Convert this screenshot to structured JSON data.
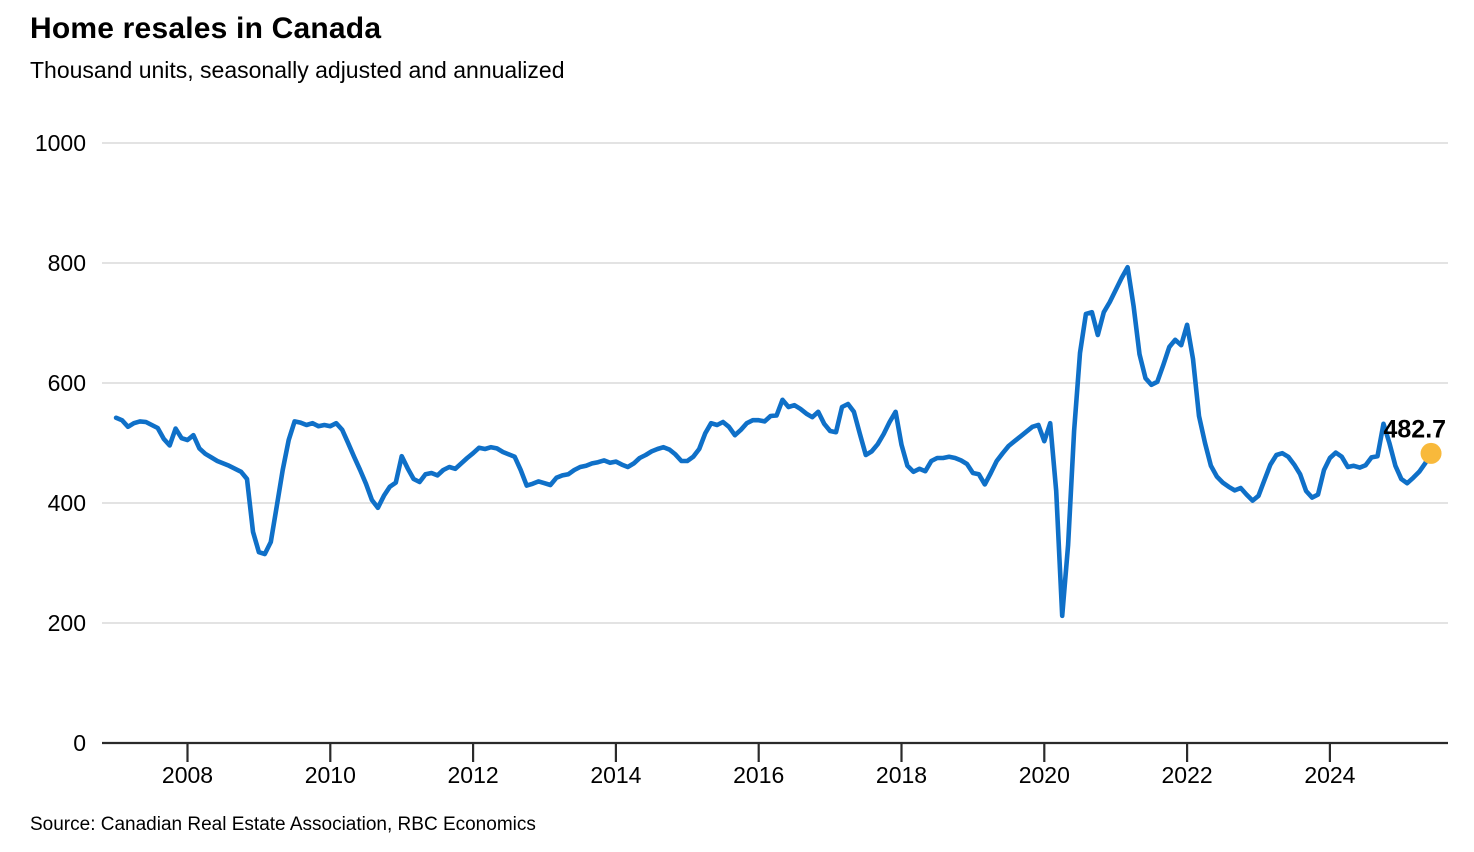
{
  "header": {
    "title": "Home resales in Canada",
    "subtitle": "Thousand units, seasonally adjusted and annualized"
  },
  "footer": {
    "source": "Source: Canadian Real Estate Association, RBC Economics"
  },
  "chart_data": {
    "type": "line",
    "title": "Home resales in Canada",
    "subtitle": "Thousand units, seasonally adjusted and annualized",
    "source": "Source: Canadian Real Estate Association, RBC Economics",
    "xlabel": "",
    "ylabel": "Thousand units, seasonally adjusted and annualized",
    "ylim": [
      0,
      1000
    ],
    "y_ticks": [
      0,
      200,
      400,
      600,
      800,
      1000
    ],
    "x_ticks": [
      2008,
      2010,
      2012,
      2014,
      2016,
      2018,
      2020,
      2022,
      2024
    ],
    "x_range_years": [
      2007.0,
      2025.42
    ],
    "grid": "horizontal",
    "legend_position": "none",
    "end_label": "482.7",
    "latest": {
      "period": "2025-06",
      "value": 482.7
    },
    "colors": {
      "line": "#0F70C8",
      "dot": "#F8B93B",
      "grid": "#E3E3E3",
      "axis": "#2A2A2A",
      "text": "#000000"
    },
    "series": [
      {
        "name": "Home resales (thousand units, SAAR)",
        "start": "2007-01",
        "frequency": "monthly",
        "values": [
          542,
          538,
          527,
          533,
          536,
          535,
          530,
          525,
          507,
          496,
          524,
          508,
          505,
          513,
          491,
          482,
          476,
          470,
          466,
          462,
          457,
          452,
          440,
          352,
          318,
          315,
          335,
          395,
          455,
          505,
          536,
          534,
          530,
          533,
          528,
          530,
          528,
          533,
          522,
          500,
          477,
          455,
          432,
          405,
          392,
          412,
          427,
          434,
          478,
          458,
          440,
          435,
          448,
          450,
          446,
          455,
          460,
          457,
          466,
          475,
          483,
          492,
          490,
          493,
          491,
          485,
          481,
          477,
          455,
          429,
          432,
          436,
          433,
          430,
          442,
          446,
          448,
          455,
          460,
          462,
          466,
          468,
          471,
          467,
          469,
          464,
          460,
          466,
          475,
          480,
          486,
          490,
          493,
          489,
          481,
          470,
          470,
          477,
          490,
          516,
          533,
          530,
          535,
          527,
          513,
          522,
          533,
          538,
          538,
          536,
          545,
          546,
          572,
          560,
          563,
          557,
          549,
          543,
          552,
          532,
          520,
          518,
          560,
          565,
          552,
          515,
          480,
          486,
          498,
          515,
          535,
          552,
          497,
          462,
          452,
          457,
          453,
          470,
          475,
          475,
          477,
          475,
          471,
          465,
          450,
          448,
          431,
          450,
          470,
          483,
          495,
          503,
          511,
          519,
          527,
          530,
          503,
          533,
          420,
          212,
          330,
          520,
          650,
          715,
          718,
          680,
          718,
          735,
          755,
          775,
          793,
          728,
          648,
          608,
          597,
          602,
          630,
          660,
          672,
          663,
          697,
          640,
          545,
          500,
          462,
          444,
          434,
          427,
          421,
          425,
          414,
          404,
          412,
          438,
          464,
          480,
          483,
          477,
          464,
          448,
          420,
          409,
          414,
          455,
          475,
          484,
          477,
          460,
          462,
          459,
          463,
          476,
          478,
          532,
          500,
          462,
          440,
          433,
          442,
          452,
          466,
          482.7
        ]
      }
    ]
  }
}
